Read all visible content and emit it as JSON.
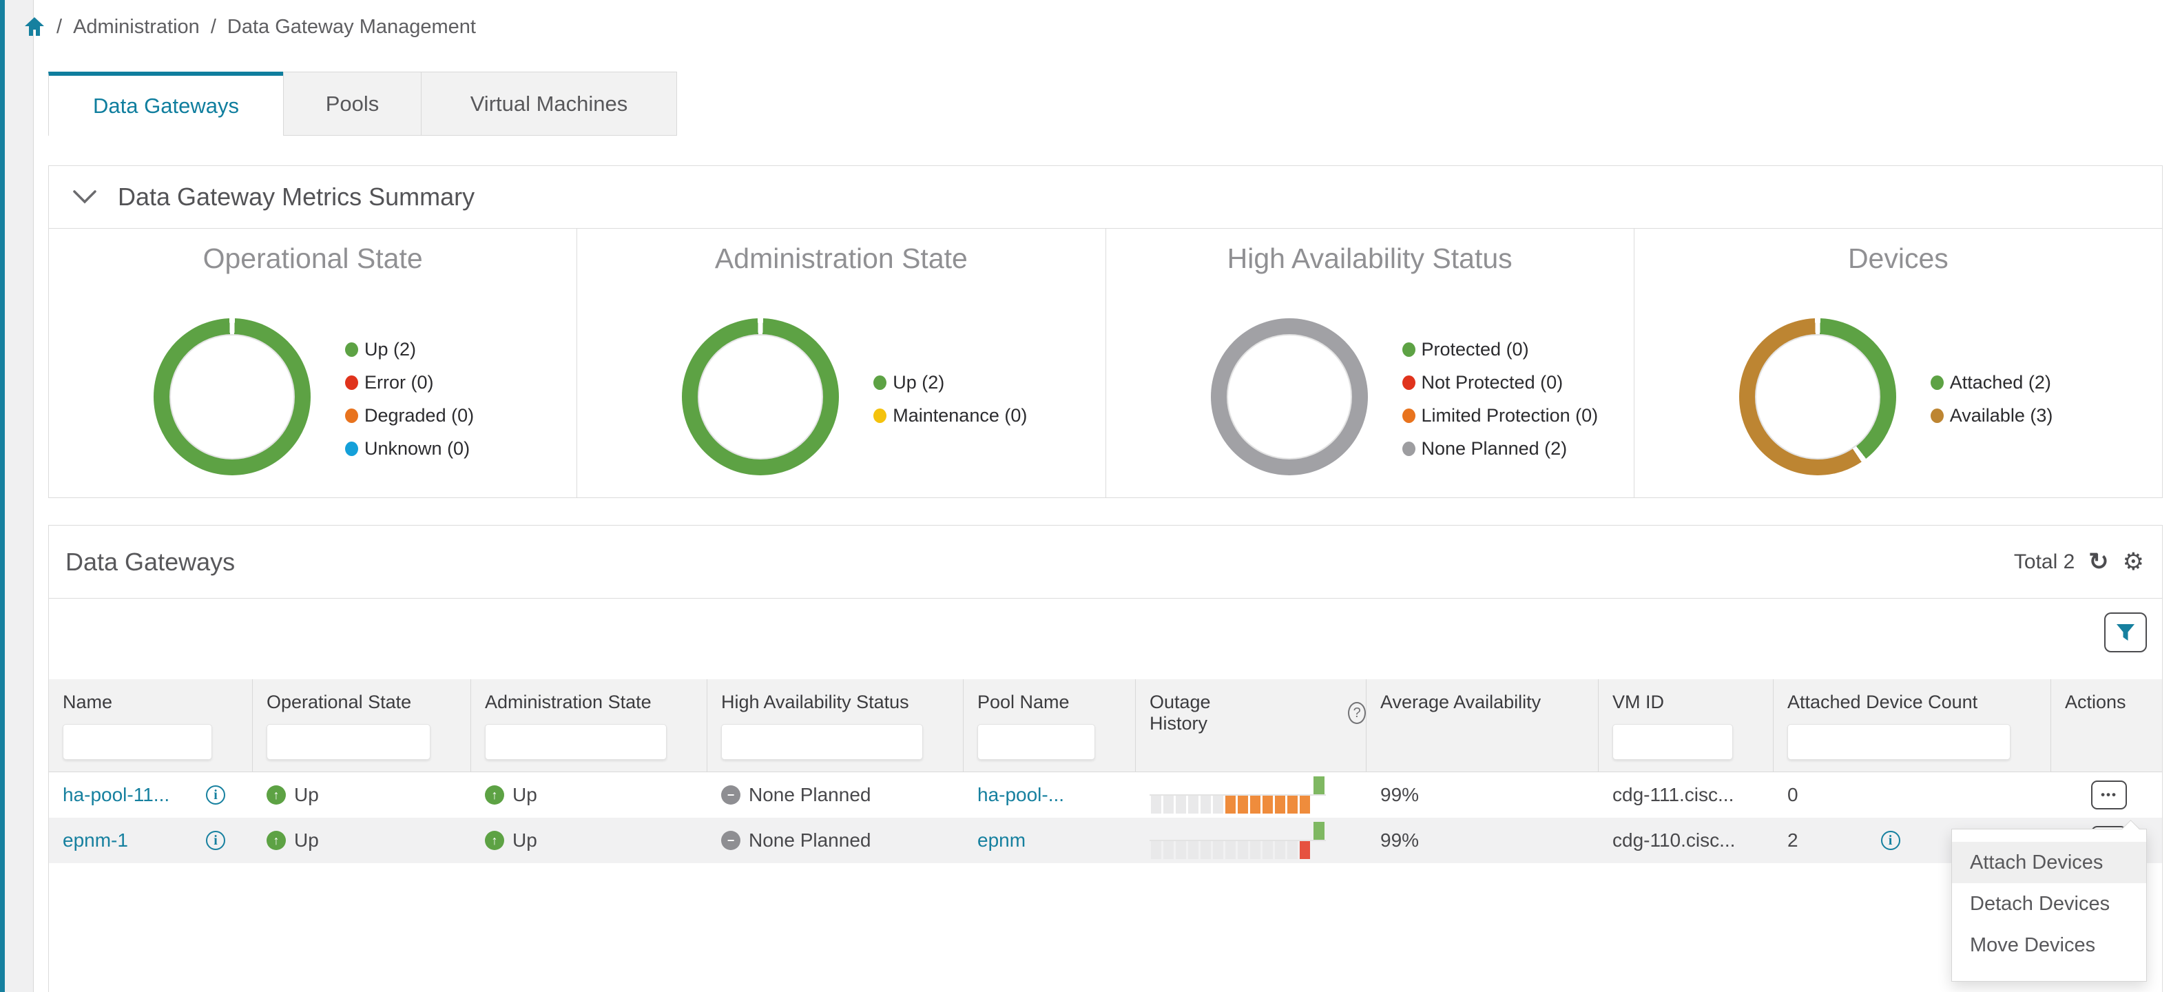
{
  "colors": {
    "accent_teal": "#16809f",
    "active_tab_teal": "#0f7e9e",
    "status_green": "#5da244",
    "status_red": "#e0331c",
    "status_orange": "#e8731e",
    "status_blue": "#14a0d9",
    "status_yellow": "#f4c20d",
    "status_gray": "#9d9da0",
    "status_amber": "#bd8532",
    "outage_orange": "#ef8c3c",
    "outage_red": "#e65240",
    "outage_green": "#7fb862"
  },
  "breadcrumb": {
    "separator": "/",
    "items": [
      "Administration",
      "Data Gateway Management"
    ]
  },
  "tabs": [
    {
      "label": "Data Gateways",
      "active": true
    },
    {
      "label": "Pools",
      "active": false
    },
    {
      "label": "Virtual Machines",
      "active": false
    }
  ],
  "metrics": {
    "title": "Data Gateway Metrics Summary",
    "charts": [
      {
        "title": "Operational State",
        "legend": [
          {
            "label": "Up (2)",
            "color": "#5da244"
          },
          {
            "label": "Error (0)",
            "color": "#e0331c"
          },
          {
            "label": "Degraded (0)",
            "color": "#e8731e"
          },
          {
            "label": "Unknown (0)",
            "color": "#14a0d9"
          }
        ]
      },
      {
        "title": "Administration State",
        "legend": [
          {
            "label": "Up (2)",
            "color": "#5da244"
          },
          {
            "label": "Maintenance (0)",
            "color": "#f4c20d"
          }
        ]
      },
      {
        "title": "High Availability Status",
        "legend": [
          {
            "label": "Protected (0)",
            "color": "#5da244"
          },
          {
            "label": "Not Protected (0)",
            "color": "#e0331c"
          },
          {
            "label": "Limited Protection (0)",
            "color": "#e8731e"
          },
          {
            "label": "None Planned (2)",
            "color": "#9d9da0"
          }
        ]
      },
      {
        "title": "Devices",
        "legend": [
          {
            "label": "Attached (2)",
            "color": "#5da244"
          },
          {
            "label": "Available (3)",
            "color": "#bd8532"
          }
        ]
      }
    ]
  },
  "chart_data": [
    {
      "type": "pie",
      "title": "Operational State",
      "labels": [
        "Up",
        "Error",
        "Degraded",
        "Unknown"
      ],
      "values": [
        2,
        0,
        0,
        0
      ],
      "colors": [
        "#5da244",
        "#e0331c",
        "#e8731e",
        "#14a0d9"
      ],
      "legend_position": "right",
      "donut": true
    },
    {
      "type": "pie",
      "title": "Administration State",
      "labels": [
        "Up",
        "Maintenance"
      ],
      "values": [
        2,
        0
      ],
      "colors": [
        "#5da244",
        "#f4c20d"
      ],
      "legend_position": "right",
      "donut": true
    },
    {
      "type": "pie",
      "title": "High Availability Status",
      "labels": [
        "Protected",
        "Not Protected",
        "Limited Protection",
        "None Planned"
      ],
      "values": [
        0,
        0,
        0,
        2
      ],
      "colors": [
        "#5da244",
        "#e0331c",
        "#e8731e",
        "#9d9da0"
      ],
      "legend_position": "right",
      "donut": true
    },
    {
      "type": "pie",
      "title": "Devices",
      "labels": [
        "Attached",
        "Available"
      ],
      "values": [
        2,
        3
      ],
      "colors": [
        "#5da244",
        "#bd8532"
      ],
      "legend_position": "right",
      "donut": true
    }
  ],
  "table": {
    "title": "Data Gateways",
    "total_label": "Total 2",
    "columns": [
      "Name",
      "Operational State",
      "Administration State",
      "High Availability Status",
      "Pool Name",
      "Outage History",
      "Average Availability",
      "VM ID",
      "Attached Device Count",
      "Actions"
    ],
    "rows": [
      {
        "name": "ha-pool-11...",
        "op_state": "Up",
        "admin_state": "Up",
        "ha_status": "None Planned",
        "pool": "ha-pool-...",
        "outage_bars": [
          "g",
          "g",
          "g",
          "g",
          "g",
          "g",
          "o",
          "o",
          "o",
          "o",
          "o",
          "o",
          "o"
        ],
        "availability": "99%",
        "vm_id": "cdg-111.cisc...",
        "count": "0",
        "count_info_icon": false,
        "actions_icon": "ellipsis"
      },
      {
        "name": "epnm-1",
        "op_state": "Up",
        "admin_state": "Up",
        "ha_status": "None Planned",
        "pool": "epnm",
        "outage_bars": [
          "g",
          "g",
          "g",
          "g",
          "g",
          "g",
          "g",
          "g",
          "g",
          "g",
          "g",
          "g",
          "r"
        ],
        "availability": "99%",
        "vm_id": "cdg-110.cisc...",
        "count": "2",
        "count_info_icon": true,
        "actions_icon": "ellipsis"
      }
    ]
  },
  "icons": {
    "ellipsis": "•••",
    "up_arrow": "↑",
    "minus": "−",
    "info": "i",
    "help": "?",
    "refresh": "↻",
    "gear": "⚙"
  },
  "context_menu": {
    "items": [
      "Attach Devices",
      "Detach Devices",
      "Move Devices"
    ],
    "hovered_item": "Attach Devices"
  }
}
